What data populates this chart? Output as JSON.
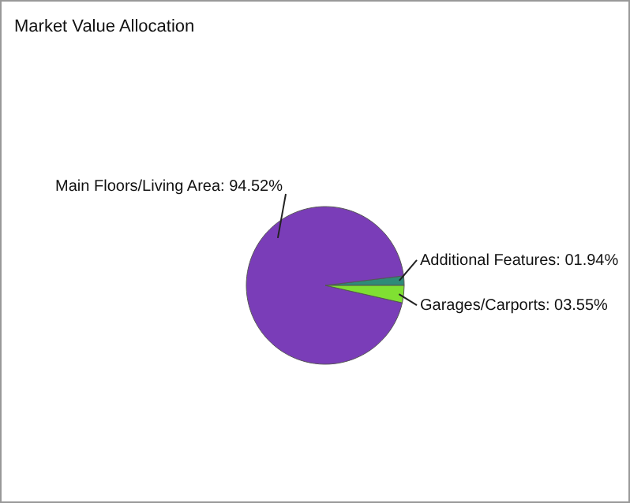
{
  "chart_data": {
    "type": "pie",
    "title": "Market Value Allocation",
    "categories": [
      "Additional Features",
      "Main Floors/Living Area",
      "Garages/Carports"
    ],
    "values": [
      1.94,
      94.52,
      3.55
    ],
    "value_labels": [
      "01.94%",
      "94.52%",
      "03.55%"
    ],
    "colors": [
      "#2e8b78",
      "#7a3db8",
      "#80e032"
    ],
    "legend": false
  }
}
